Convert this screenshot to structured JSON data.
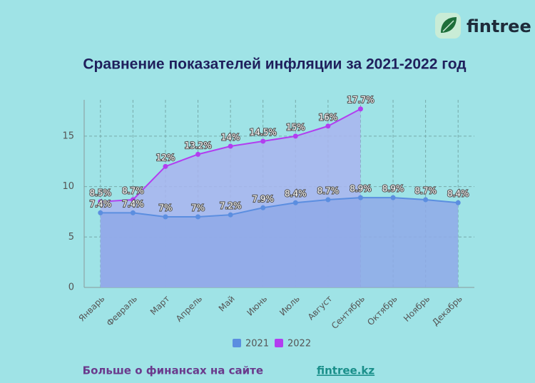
{
  "logo": "fintree",
  "chart_data": {
    "type": "line",
    "title": "Сравнение показателей инфляции за 2021-2022 год",
    "categories": [
      "Январь",
      "Февраль",
      "Март",
      "Апрель",
      "Май",
      "Июнь",
      "Июль",
      "Август",
      "Сентябрь",
      "Октябрь",
      "Ноябрь",
      "Декабрь"
    ],
    "series": [
      {
        "name": "2021",
        "color": "#5b8ee0",
        "area": "#8fa9e8",
        "values": [
          7.4,
          7.4,
          7,
          7,
          7.2,
          7.9,
          8.4,
          8.7,
          8.9,
          8.9,
          8.7,
          8.4
        ],
        "value_labels": [
          "7.4%",
          "7.4%",
          "7%",
          "7%",
          "7.2%",
          "7.9%",
          "8.4%",
          "8.7%",
          "8.9%",
          "8.9%",
          "8.7%",
          "8.4%"
        ]
      },
      {
        "name": "2022",
        "color": "#b23ef0",
        "area": "#a9b4ee",
        "values": [
          8.5,
          8.7,
          12,
          13.2,
          14,
          14.5,
          15,
          16,
          17.7,
          null,
          null,
          null
        ],
        "value_labels": [
          "8.5%",
          "8.7%",
          "12%",
          "13.2%",
          "14%",
          "14.5%",
          "15%",
          "16%",
          "17.7%",
          null,
          null,
          null
        ]
      }
    ],
    "ylim": [
      0,
      18.6
    ],
    "yticks": [
      0,
      5,
      10,
      15
    ],
    "grid": true
  },
  "footer": {
    "text": "Больше о финансах на сайте",
    "link": "fintree.kz"
  }
}
